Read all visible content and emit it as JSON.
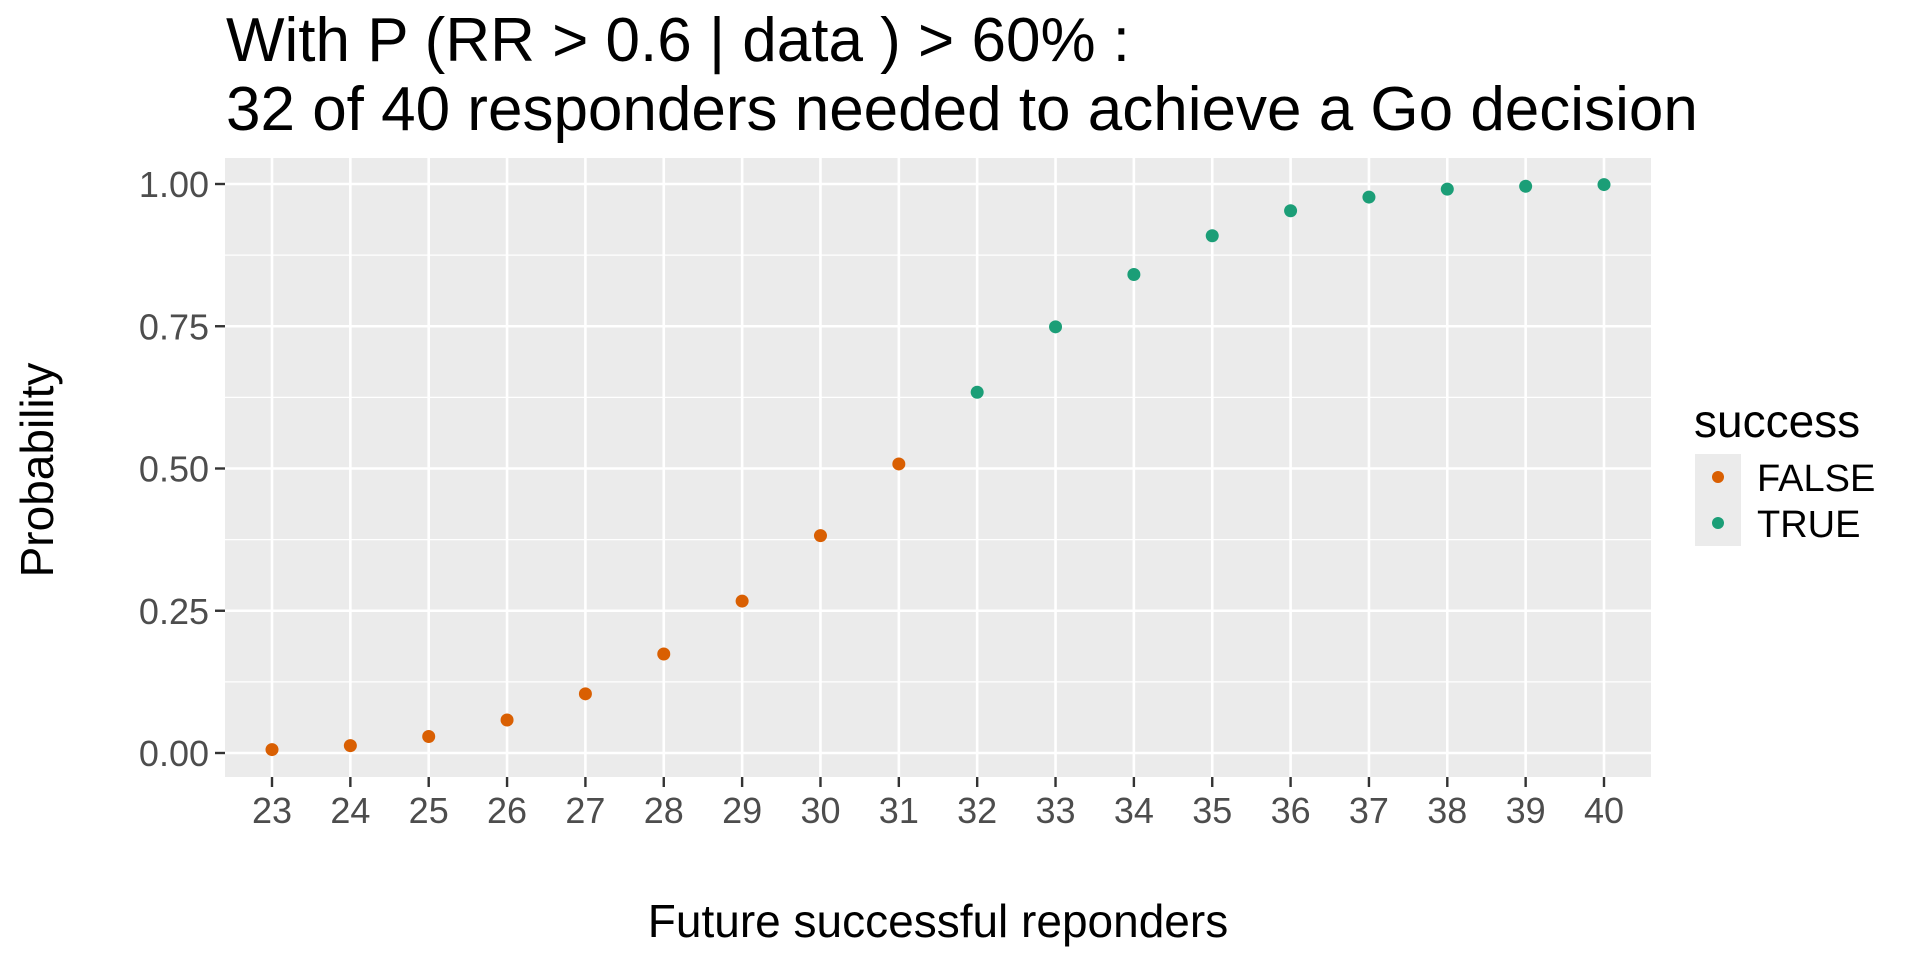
{
  "title": {
    "line1": "With P (RR > 0.6 | data ) > 60% :",
    "line2": "32 of 40 responders needed to achieve a Go decision"
  },
  "axes": {
    "xlabel": "Future successful reponders",
    "ylabel": "Probability",
    "yticks": [
      "0.00",
      "0.25",
      "0.50",
      "0.75",
      "1.00"
    ],
    "xticks": [
      "23",
      "24",
      "25",
      "26",
      "27",
      "28",
      "29",
      "30",
      "31",
      "32",
      "33",
      "34",
      "35",
      "36",
      "37",
      "38",
      "39",
      "40"
    ]
  },
  "legend": {
    "title": "success",
    "items": [
      {
        "label": "FALSE",
        "color": "#D95F02"
      },
      {
        "label": "TRUE",
        "color": "#1B9E77"
      }
    ]
  },
  "colors": {
    "panel_bg": "#EBEBEB",
    "grid": "#FFFFFF",
    "tick_text": "#4D4D4D",
    "false": "#D95F02",
    "true": "#1B9E77"
  },
  "chart_data": {
    "type": "scatter",
    "title": "With P (RR > 0.6 | data ) > 60% :\n32 of 40 responders needed to achieve a Go decision",
    "xlabel": "Future successful reponders",
    "ylabel": "Probability",
    "xlim": [
      22.4,
      40.6
    ],
    "ylim": [
      -0.04,
      1.04
    ],
    "grid": true,
    "legend_position": "right",
    "legend_title": "success",
    "x": [
      23,
      24,
      25,
      26,
      27,
      28,
      29,
      30,
      31,
      32,
      33,
      34,
      35,
      36,
      37,
      38,
      39,
      40
    ],
    "series": [
      {
        "name": "FALSE",
        "color": "#D95F02",
        "x": [
          23,
          24,
          25,
          26,
          27,
          28,
          29,
          30,
          31
        ],
        "values": [
          0.006,
          0.013,
          0.029,
          0.058,
          0.104,
          0.174,
          0.267,
          0.382,
          0.508
        ]
      },
      {
        "name": "TRUE",
        "color": "#1B9E77",
        "x": [
          32,
          33,
          34,
          35,
          36,
          37,
          38,
          39,
          40
        ],
        "values": [
          0.634,
          0.749,
          0.841,
          0.909,
          0.953,
          0.977,
          0.991,
          0.996,
          0.999
        ]
      }
    ]
  }
}
